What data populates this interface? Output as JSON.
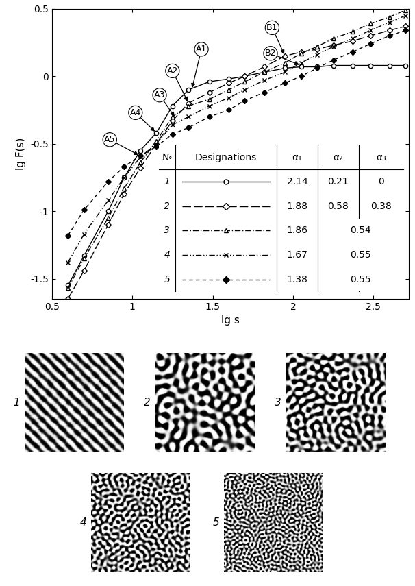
{
  "chart_data": {
    "type": "line",
    "x_label": "lg s",
    "y_label": "lg F(s)",
    "xlim": [
      0.5,
      2.72
    ],
    "ylim": [
      -1.65,
      0.5
    ],
    "xticks": [
      0.5,
      1,
      1.5,
      2,
      2.5
    ],
    "yticks": [
      -1.5,
      -1,
      -0.5,
      0,
      0.5
    ],
    "x": [
      0.6,
      0.7,
      0.85,
      0.95,
      1.05,
      1.15,
      1.25,
      1.35,
      1.48,
      1.6,
      1.7,
      1.82,
      1.95,
      2.05,
      2.15,
      2.25,
      2.37,
      2.48,
      2.6,
      2.7
    ],
    "series": [
      {
        "name": "1",
        "color": "#000000",
        "marker": "circle",
        "line_style": "solid",
        "alpha1": 2.14,
        "alpha2": 0.21,
        "alpha3": 0,
        "values": [
          -1.55,
          -1.33,
          -1.0,
          -0.75,
          -0.55,
          -0.42,
          -0.22,
          -0.1,
          -0.04,
          -0.02,
          0.0,
          0.03,
          0.06,
          0.07,
          0.07,
          0.08,
          0.08,
          0.08,
          0.08,
          0.08
        ]
      },
      {
        "name": "2",
        "color": "#000000",
        "marker": "diamond",
        "line_style": "long_dash",
        "alpha1": 1.88,
        "alpha2": 0.58,
        "alpha3": 0.38,
        "values": [
          -1.65,
          -1.44,
          -1.1,
          -0.87,
          -0.68,
          -0.5,
          -0.33,
          -0.2,
          -0.12,
          -0.05,
          0.0,
          0.07,
          0.15,
          0.18,
          0.2,
          0.23,
          0.26,
          0.3,
          0.34,
          0.37
        ]
      },
      {
        "name": "3",
        "color": "#000000",
        "marker": "triangle",
        "line_style": "dash_dot",
        "alpha1": 1.86,
        "alpha2": 0.54,
        "alpha3": null,
        "values": [
          -1.57,
          -1.35,
          -1.05,
          -0.83,
          -0.64,
          -0.48,
          -0.3,
          -0.22,
          -0.17,
          -0.1,
          -0.04,
          0.03,
          0.1,
          0.17,
          0.22,
          0.28,
          0.33,
          0.39,
          0.44,
          0.49
        ]
      },
      {
        "name": "4",
        "color": "#000000",
        "marker": "x",
        "line_style": "dash_dot_dot",
        "alpha1": 1.67,
        "alpha2": 0.55,
        "alpha3": null,
        "values": [
          -1.38,
          -1.17,
          -0.92,
          -0.75,
          -0.6,
          -0.5,
          -0.36,
          -0.3,
          -0.22,
          -0.16,
          -0.1,
          -0.03,
          0.03,
          0.1,
          0.16,
          0.22,
          0.28,
          0.34,
          0.4,
          0.45
        ]
      },
      {
        "name": "5",
        "color": "#000000",
        "marker": "filled_diamond",
        "line_style": "dash",
        "alpha1": 1.38,
        "alpha2": 0.55,
        "alpha3": null,
        "values": [
          -1.18,
          -0.99,
          -0.78,
          -0.67,
          -0.59,
          -0.52,
          -0.43,
          -0.38,
          -0.3,
          -0.25,
          -0.18,
          -0.12,
          -0.05,
          0.0,
          0.06,
          0.12,
          0.18,
          0.24,
          0.3,
          0.34
        ]
      }
    ],
    "table_header": [
      "№",
      "Designations",
      "α₁",
      "α₂",
      "α₃"
    ],
    "annotations": [
      {
        "text": "A1",
        "x": 1.37,
        "y": -0.1
      },
      {
        "text": "A2",
        "x": 1.35,
        "y": -0.2
      },
      {
        "text": "A3",
        "x": 1.27,
        "y": -0.31
      },
      {
        "text": "A4",
        "x": 1.15,
        "y": -0.42
      },
      {
        "text": "A5",
        "x": 1.05,
        "y": -0.59
      },
      {
        "text": "B1",
        "x": 1.95,
        "y": 0.15
      },
      {
        "text": "B2",
        "x": 2.05,
        "y": 0.08
      }
    ],
    "panels": [
      "1",
      "2",
      "3",
      "4",
      "5"
    ]
  }
}
